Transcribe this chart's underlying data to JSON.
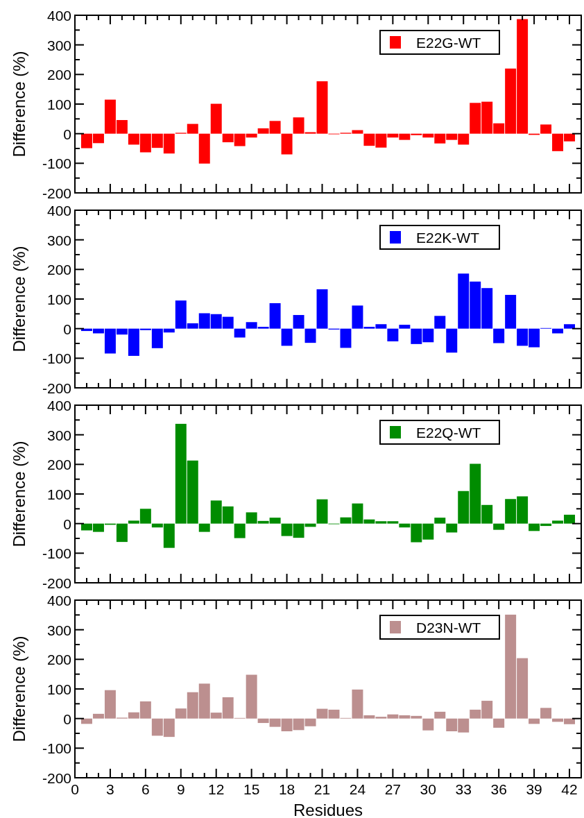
{
  "chart_data": [
    {
      "type": "bar",
      "ylabel": "Difference (%)",
      "x": [
        1,
        2,
        3,
        4,
        5,
        6,
        7,
        8,
        9,
        10,
        11,
        12,
        13,
        14,
        15,
        16,
        17,
        18,
        19,
        20,
        21,
        22,
        23,
        24,
        25,
        26,
        27,
        28,
        29,
        30,
        31,
        32,
        33,
        34,
        35,
        36,
        37,
        38,
        39,
        40,
        41,
        42
      ],
      "series": [
        {
          "name": "E22G-WT",
          "color": "#ff0000",
          "values": [
            -49,
            -32,
            115,
            46,
            -37,
            -63,
            -48,
            -67,
            3,
            33,
            -101,
            101,
            -29,
            -42,
            -13,
            18,
            43,
            -70,
            55,
            5,
            177,
            -2,
            3,
            12,
            -41,
            -47,
            -13,
            -21,
            -5,
            -13,
            -33,
            -21,
            -37,
            104,
            108,
            35,
            220,
            387,
            -4,
            31,
            -59,
            -26
          ]
        }
      ],
      "xlim": [
        0,
        43
      ],
      "xticks": [
        0,
        {
          "value": 1,
          "label": null
        },
        {
          "value": 2,
          "label": null
        },
        3,
        {
          "value": 4,
          "label": null
        },
        {
          "value": 5,
          "label": null
        },
        6,
        {
          "value": 7,
          "label": null
        },
        {
          "value": 8,
          "label": null
        },
        9,
        {
          "value": 10,
          "label": null
        },
        {
          "value": 11,
          "label": null
        },
        12,
        {
          "value": 13,
          "label": null
        },
        {
          "value": 14,
          "label": null
        },
        15,
        {
          "value": 16,
          "label": null
        },
        {
          "value": 17,
          "label": null
        },
        18,
        {
          "value": 19,
          "label": null
        },
        {
          "value": 20,
          "label": null
        },
        21,
        {
          "value": 22,
          "label": null
        },
        {
          "value": 23,
          "label": null
        },
        24,
        {
          "value": 25,
          "label": null
        },
        {
          "value": 26,
          "label": null
        },
        27,
        {
          "value": 28,
          "label": null
        },
        {
          "value": 29,
          "label": null
        },
        30,
        {
          "value": 31,
          "label": null
        },
        {
          "value": 32,
          "label": null
        },
        33,
        {
          "value": 34,
          "label": null
        },
        {
          "value": 35,
          "label": null
        },
        36,
        {
          "value": 37,
          "label": null
        },
        {
          "value": 38,
          "label": null
        },
        39,
        {
          "value": 40,
          "label": null
        },
        {
          "value": 41,
          "label": null
        },
        42
      ],
      "ylim": [
        -200,
        400
      ],
      "yticks": [
        -200,
        {
          "value": -150,
          "label": null
        },
        -100,
        {
          "value": -50,
          "label": null
        },
        0,
        {
          "value": 50,
          "label": null
        },
        100,
        {
          "value": 150,
          "label": null
        },
        200,
        {
          "value": 250,
          "label": null
        },
        300,
        {
          "value": 350,
          "label": null
        },
        400
      ],
      "tick_labels": "y",
      "legend": "top right",
      "grid": false
    },
    {
      "type": "bar",
      "ylabel": "Difference (%)",
      "x": [
        1,
        2,
        3,
        4,
        5,
        6,
        7,
        8,
        9,
        10,
        11,
        12,
        13,
        14,
        15,
        16,
        17,
        18,
        19,
        20,
        21,
        22,
        23,
        24,
        25,
        26,
        27,
        28,
        29,
        30,
        31,
        32,
        33,
        34,
        35,
        36,
        37,
        38,
        39,
        40,
        41,
        42
      ],
      "series": [
        {
          "name": "E22K-WT",
          "color": "#0000ff",
          "values": [
            -8,
            -16,
            -84,
            -20,
            -92,
            -5,
            -66,
            -13,
            95,
            18,
            52,
            49,
            40,
            -30,
            22,
            6,
            86,
            -58,
            46,
            -48,
            133,
            -3,
            -65,
            78,
            6,
            15,
            -43,
            13,
            -52,
            -46,
            43,
            -81,
            186,
            159,
            137,
            -49,
            114,
            -58,
            -63,
            2,
            -16,
            15
          ]
        }
      ],
      "xlim": [
        0,
        43
      ],
      "xticks": [
        0,
        {
          "value": 1,
          "label": null
        },
        {
          "value": 2,
          "label": null
        },
        3,
        {
          "value": 4,
          "label": null
        },
        {
          "value": 5,
          "label": null
        },
        6,
        {
          "value": 7,
          "label": null
        },
        {
          "value": 8,
          "label": null
        },
        9,
        {
          "value": 10,
          "label": null
        },
        {
          "value": 11,
          "label": null
        },
        12,
        {
          "value": 13,
          "label": null
        },
        {
          "value": 14,
          "label": null
        },
        15,
        {
          "value": 16,
          "label": null
        },
        {
          "value": 17,
          "label": null
        },
        18,
        {
          "value": 19,
          "label": null
        },
        {
          "value": 20,
          "label": null
        },
        21,
        {
          "value": 22,
          "label": null
        },
        {
          "value": 23,
          "label": null
        },
        24,
        {
          "value": 25,
          "label": null
        },
        {
          "value": 26,
          "label": null
        },
        27,
        {
          "value": 28,
          "label": null
        },
        {
          "value": 29,
          "label": null
        },
        30,
        {
          "value": 31,
          "label": null
        },
        {
          "value": 32,
          "label": null
        },
        33,
        {
          "value": 34,
          "label": null
        },
        {
          "value": 35,
          "label": null
        },
        36,
        {
          "value": 37,
          "label": null
        },
        {
          "value": 38,
          "label": null
        },
        39,
        {
          "value": 40,
          "label": null
        },
        {
          "value": 41,
          "label": null
        },
        42
      ],
      "ylim": [
        -200,
        400
      ],
      "yticks": [
        -200,
        {
          "value": -150,
          "label": null
        },
        -100,
        {
          "value": -50,
          "label": null
        },
        0,
        {
          "value": 50,
          "label": null
        },
        100,
        {
          "value": 150,
          "label": null
        },
        200,
        {
          "value": 250,
          "label": null
        },
        300,
        {
          "value": 350,
          "label": null
        },
        400
      ],
      "tick_labels": "y",
      "legend": "top right",
      "grid": false
    },
    {
      "type": "bar",
      "ylabel": "Difference (%)",
      "x": [
        1,
        2,
        3,
        4,
        5,
        6,
        7,
        8,
        9,
        10,
        11,
        12,
        13,
        14,
        15,
        16,
        17,
        18,
        19,
        20,
        21,
        22,
        23,
        24,
        25,
        26,
        27,
        28,
        29,
        30,
        31,
        32,
        33,
        34,
        35,
        36,
        37,
        38,
        39,
        40,
        41,
        42
      ],
      "series": [
        {
          "name": "E22Q-WT",
          "color": "#008c00",
          "values": [
            -23,
            -28,
            -4,
            -62,
            10,
            50,
            -13,
            -82,
            337,
            213,
            -28,
            78,
            58,
            -49,
            38,
            9,
            20,
            -42,
            -48,
            -11,
            82,
            -2,
            21,
            68,
            14,
            8,
            8,
            -13,
            -63,
            -54,
            20,
            -30,
            110,
            202,
            63,
            -21,
            83,
            92,
            -25,
            -8,
            10,
            30
          ]
        }
      ],
      "xlim": [
        0,
        43
      ],
      "xticks": [
        0,
        {
          "value": 1,
          "label": null
        },
        {
          "value": 2,
          "label": null
        },
        3,
        {
          "value": 4,
          "label": null
        },
        {
          "value": 5,
          "label": null
        },
        6,
        {
          "value": 7,
          "label": null
        },
        {
          "value": 8,
          "label": null
        },
        9,
        {
          "value": 10,
          "label": null
        },
        {
          "value": 11,
          "label": null
        },
        12,
        {
          "value": 13,
          "label": null
        },
        {
          "value": 14,
          "label": null
        },
        15,
        {
          "value": 16,
          "label": null
        },
        {
          "value": 17,
          "label": null
        },
        18,
        {
          "value": 19,
          "label": null
        },
        {
          "value": 20,
          "label": null
        },
        21,
        {
          "value": 22,
          "label": null
        },
        {
          "value": 23,
          "label": null
        },
        24,
        {
          "value": 25,
          "label": null
        },
        {
          "value": 26,
          "label": null
        },
        27,
        {
          "value": 28,
          "label": null
        },
        {
          "value": 29,
          "label": null
        },
        30,
        {
          "value": 31,
          "label": null
        },
        {
          "value": 32,
          "label": null
        },
        33,
        {
          "value": 34,
          "label": null
        },
        {
          "value": 35,
          "label": null
        },
        36,
        {
          "value": 37,
          "label": null
        },
        {
          "value": 38,
          "label": null
        },
        39,
        {
          "value": 40,
          "label": null
        },
        {
          "value": 41,
          "label": null
        },
        42
      ],
      "ylim": [
        -200,
        400
      ],
      "yticks": [
        -200,
        {
          "value": -150,
          "label": null
        },
        -100,
        {
          "value": -50,
          "label": null
        },
        0,
        {
          "value": 50,
          "label": null
        },
        100,
        {
          "value": 150,
          "label": null
        },
        200,
        {
          "value": 250,
          "label": null
        },
        300,
        {
          "value": 350,
          "label": null
        },
        400
      ],
      "tick_labels": "y",
      "legend": "top right",
      "grid": false
    },
    {
      "type": "bar",
      "xlabel": "Residues",
      "ylabel": "Difference (%)",
      "x": [
        1,
        2,
        3,
        4,
        5,
        6,
        7,
        8,
        9,
        10,
        11,
        12,
        13,
        14,
        15,
        16,
        17,
        18,
        19,
        20,
        21,
        22,
        23,
        24,
        25,
        26,
        27,
        28,
        29,
        30,
        31,
        32,
        33,
        34,
        35,
        36,
        37,
        38,
        39,
        40,
        41,
        42
      ],
      "series": [
        {
          "name": "D23N-WT",
          "color": "#bc8f8f",
          "values": [
            -18,
            16,
            96,
            3,
            21,
            58,
            -58,
            -62,
            34,
            89,
            118,
            20,
            72,
            2,
            148,
            -15,
            -28,
            -43,
            -39,
            -26,
            33,
            30,
            2,
            98,
            11,
            6,
            14,
            11,
            9,
            -40,
            23,
            -43,
            -47,
            30,
            60,
            -31,
            351,
            204,
            -18,
            36,
            -11,
            -19
          ]
        }
      ],
      "xlim": [
        0,
        43
      ],
      "xticks": [
        0,
        {
          "value": 1,
          "label": null
        },
        {
          "value": 2,
          "label": null
        },
        3,
        {
          "value": 4,
          "label": null
        },
        {
          "value": 5,
          "label": null
        },
        6,
        {
          "value": 7,
          "label": null
        },
        {
          "value": 8,
          "label": null
        },
        9,
        {
          "value": 10,
          "label": null
        },
        {
          "value": 11,
          "label": null
        },
        12,
        {
          "value": 13,
          "label": null
        },
        {
          "value": 14,
          "label": null
        },
        15,
        {
          "value": 16,
          "label": null
        },
        {
          "value": 17,
          "label": null
        },
        18,
        {
          "value": 19,
          "label": null
        },
        {
          "value": 20,
          "label": null
        },
        21,
        {
          "value": 22,
          "label": null
        },
        {
          "value": 23,
          "label": null
        },
        24,
        {
          "value": 25,
          "label": null
        },
        {
          "value": 26,
          "label": null
        },
        27,
        {
          "value": 28,
          "label": null
        },
        {
          "value": 29,
          "label": null
        },
        30,
        {
          "value": 31,
          "label": null
        },
        {
          "value": 32,
          "label": null
        },
        33,
        {
          "value": 34,
          "label": null
        },
        {
          "value": 35,
          "label": null
        },
        36,
        {
          "value": 37,
          "label": null
        },
        {
          "value": 38,
          "label": null
        },
        39,
        {
          "value": 40,
          "label": null
        },
        {
          "value": 41,
          "label": null
        },
        42
      ],
      "ylim": [
        -200,
        400
      ],
      "yticks": [
        -200,
        {
          "value": -150,
          "label": null
        },
        -100,
        {
          "value": -50,
          "label": null
        },
        0,
        {
          "value": 50,
          "label": null
        },
        100,
        {
          "value": 150,
          "label": null
        },
        200,
        {
          "value": 250,
          "label": null
        },
        300,
        {
          "value": 350,
          "label": null
        },
        400
      ],
      "legend": "top right",
      "grid": false
    }
  ]
}
